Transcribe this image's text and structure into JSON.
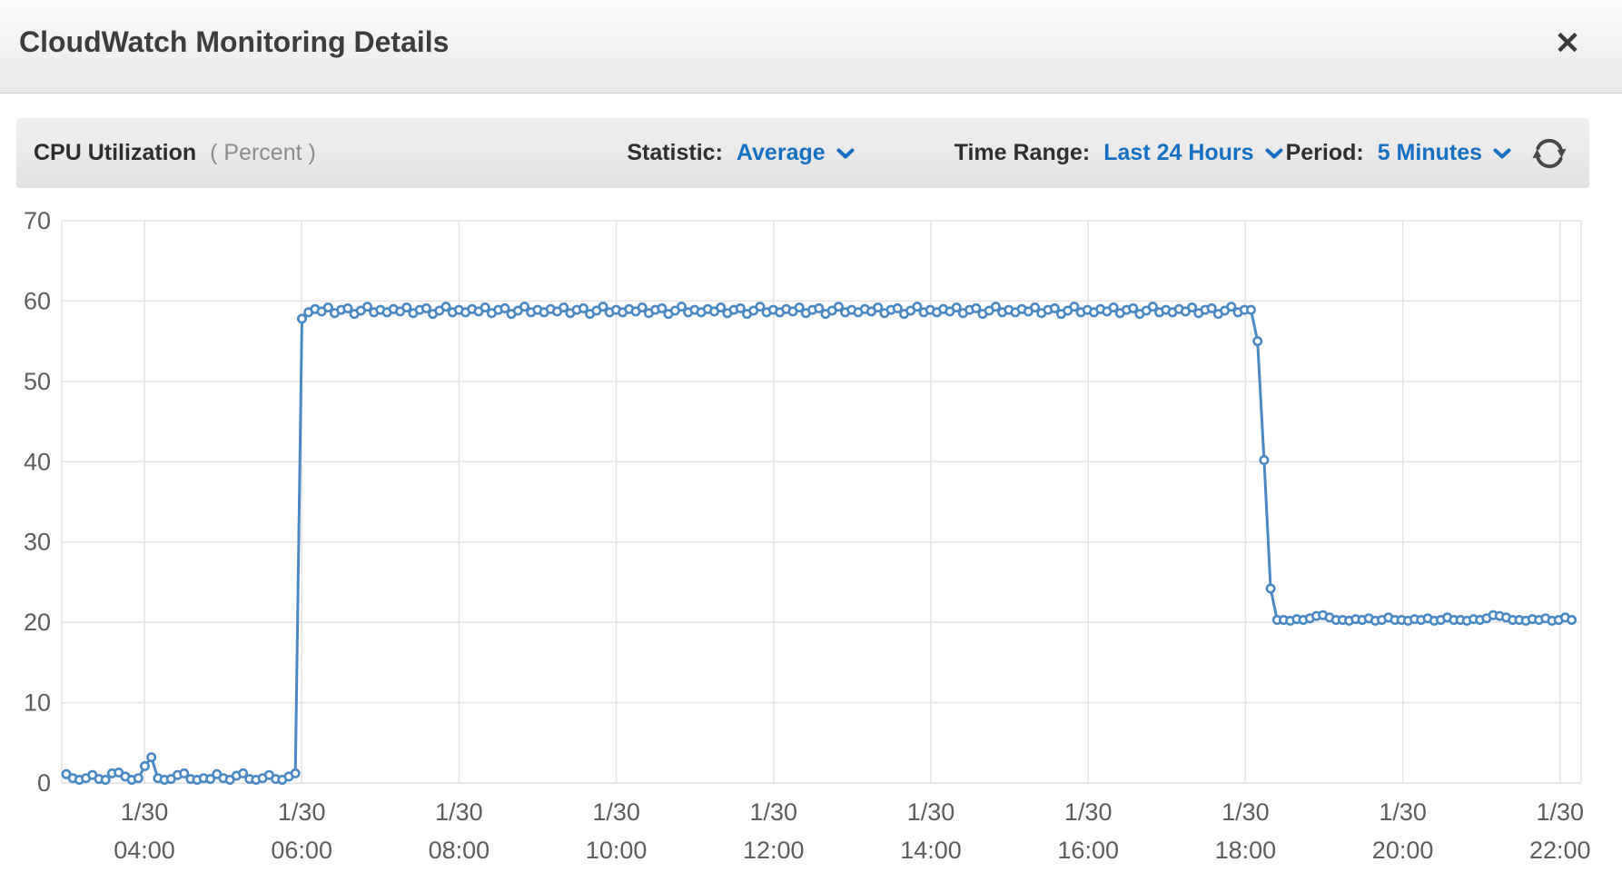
{
  "header": {
    "title": "CloudWatch Monitoring Details",
    "close_glyph": "✕"
  },
  "toolbar": {
    "metric_name": "CPU Utilization",
    "metric_unit": "( Percent )",
    "statistic_label": "Statistic:",
    "statistic_value": "Average",
    "time_range_label": "Time Range:",
    "time_range_value": "Last 24 Hours",
    "period_label": "Period:",
    "period_value": "5 Minutes"
  },
  "colors": {
    "accent_blue": "#1570c4",
    "line_blue": "#4a89c4",
    "grid": "#e4e4e4",
    "tick_text": "#5d5d5d",
    "refresh_icon": "#484848"
  },
  "chart_data": {
    "type": "line",
    "title": "CPU Utilization",
    "ylabel": "Percent",
    "ylim": [
      0,
      70
    ],
    "y_ticks": [
      0,
      10,
      20,
      30,
      40,
      50,
      60,
      70
    ],
    "x_ticks": [
      {
        "date": "1/30",
        "time": "04:00"
      },
      {
        "date": "1/30",
        "time": "06:00"
      },
      {
        "date": "1/30",
        "time": "08:00"
      },
      {
        "date": "1/30",
        "time": "10:00"
      },
      {
        "date": "1/30",
        "time": "12:00"
      },
      {
        "date": "1/30",
        "time": "14:00"
      },
      {
        "date": "1/30",
        "time": "16:00"
      },
      {
        "date": "1/30",
        "time": "18:00"
      },
      {
        "date": "1/30",
        "time": "20:00"
      },
      {
        "date": "1/30",
        "time": "22:00"
      }
    ],
    "grid": true,
    "legend": "none",
    "start_time": "1/30 03:00",
    "interval_minutes": 5,
    "series": [
      {
        "name": "CPUUtilization",
        "statistic": "Average",
        "values": [
          1.1,
          0.6,
          0.4,
          0.6,
          1.0,
          0.5,
          0.4,
          1.2,
          1.3,
          0.8,
          0.4,
          0.6,
          2.1,
          3.2,
          0.6,
          0.4,
          0.5,
          1.0,
          1.2,
          0.5,
          0.4,
          0.6,
          0.5,
          1.1,
          0.6,
          0.4,
          0.9,
          1.2,
          0.5,
          0.4,
          0.6,
          1.0,
          0.5,
          0.4,
          0.8,
          1.2,
          57.8,
          58.6,
          59.0,
          58.7,
          59.2,
          58.5,
          58.9,
          59.1,
          58.4,
          58.8,
          59.3,
          58.6,
          58.9,
          58.6,
          59.0,
          58.7,
          59.2,
          58.5,
          58.9,
          59.1,
          58.4,
          58.8,
          59.3,
          58.6,
          58.9,
          58.6,
          59.0,
          58.7,
          59.2,
          58.5,
          58.9,
          59.1,
          58.4,
          58.8,
          59.3,
          58.6,
          58.9,
          58.6,
          59.0,
          58.7,
          59.2,
          58.5,
          58.9,
          59.1,
          58.4,
          58.8,
          59.3,
          58.6,
          58.9,
          58.6,
          59.0,
          58.7,
          59.2,
          58.5,
          58.9,
          59.1,
          58.4,
          58.8,
          59.3,
          58.6,
          58.9,
          58.6,
          59.0,
          58.7,
          59.2,
          58.5,
          58.9,
          59.1,
          58.4,
          58.8,
          59.3,
          58.6,
          58.9,
          58.6,
          59.0,
          58.7,
          59.2,
          58.5,
          58.9,
          59.1,
          58.4,
          58.8,
          59.3,
          58.6,
          58.9,
          58.6,
          59.0,
          58.7,
          59.2,
          58.5,
          58.9,
          59.1,
          58.4,
          58.8,
          59.3,
          58.6,
          58.9,
          58.6,
          59.0,
          58.7,
          59.2,
          58.5,
          58.9,
          59.1,
          58.4,
          58.8,
          59.3,
          58.6,
          58.9,
          58.6,
          59.0,
          58.7,
          59.2,
          58.5,
          58.9,
          59.1,
          58.4,
          58.8,
          59.3,
          58.6,
          58.9,
          58.6,
          59.0,
          58.7,
          59.2,
          58.5,
          58.9,
          59.1,
          58.4,
          58.8,
          59.3,
          58.6,
          58.9,
          58.6,
          59.0,
          58.7,
          59.2,
          58.5,
          58.9,
          59.1,
          58.4,
          58.8,
          59.3,
          58.6,
          58.9,
          58.9,
          55.0,
          40.2,
          24.2,
          20.3,
          20.3,
          20.2,
          20.4,
          20.3,
          20.5,
          20.8,
          20.9,
          20.6,
          20.3,
          20.3,
          20.2,
          20.4,
          20.3,
          20.5,
          20.2,
          20.3,
          20.6,
          20.3,
          20.3,
          20.2,
          20.4,
          20.3,
          20.5,
          20.2,
          20.3,
          20.6,
          20.3,
          20.3,
          20.2,
          20.4,
          20.3,
          20.5,
          20.9,
          20.8,
          20.6,
          20.3,
          20.3,
          20.2,
          20.4,
          20.3,
          20.5,
          20.2,
          20.3,
          20.6,
          20.3
        ]
      }
    ]
  }
}
